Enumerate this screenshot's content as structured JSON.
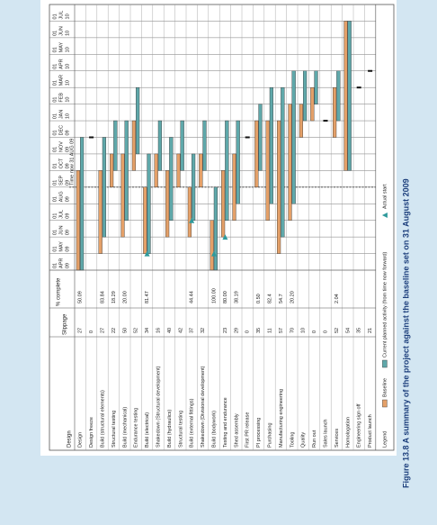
{
  "chart_data": {
    "type": "gantt",
    "title": "Figure 13.8 A summary of the project against the baseline set on 31 August 2009",
    "task_header": "Design",
    "slippage_header": "Slippage",
    "percent_header": "% complete",
    "time_now_label": "Time now 31 AUG 09",
    "time_now": "2009-08-31",
    "months": [
      [
        "01",
        "APR",
        "09"
      ],
      [
        "01",
        "MAY",
        "09"
      ],
      [
        "01",
        "JUN",
        "09"
      ],
      [
        "01",
        "JUL",
        "09"
      ],
      [
        "01",
        "AUG",
        "09"
      ],
      [
        "01",
        "SEP",
        "09"
      ],
      [
        "01",
        "OCT",
        "09"
      ],
      [
        "01",
        "NOV",
        "09"
      ],
      [
        "01",
        "DEC",
        "09"
      ],
      [
        "01",
        "JAN",
        "10"
      ],
      [
        "01",
        "FEB",
        "10"
      ],
      [
        "01",
        "MAR",
        "10"
      ],
      [
        "01",
        "APR",
        "10"
      ],
      [
        "01",
        "MAY",
        "10"
      ],
      [
        "01",
        "JUN",
        "10"
      ],
      [
        "01",
        "JUL",
        "10"
      ]
    ],
    "month_dates": [
      "2009-04",
      "2009-05",
      "2009-06",
      "2009-07",
      "2009-08",
      "2009-09",
      "2009-10",
      "2009-11",
      "2009-12",
      "2010-01",
      "2010-02",
      "2010-03",
      "2010-04",
      "2010-05",
      "2010-06",
      "2010-07"
    ],
    "colors": {
      "baseline": "#e4a068",
      "current": "#5fa8aa",
      "actual": "#2f9a9c"
    },
    "tasks": [
      {
        "name": "Design",
        "slippage": 27,
        "percent": "50.09",
        "baseline": [
          "2009-04",
          "2009-10"
        ],
        "current": [
          "2009-04",
          "2009-12"
        ]
      },
      {
        "name": "Design freeze",
        "slippage": 0,
        "milestone": "2009-12"
      },
      {
        "name": "Build (structural elements)",
        "slippage": 27,
        "percent": "83.84",
        "baseline": [
          "2009-05",
          "2009-10"
        ],
        "current": [
          "2009-06",
          "2009-12"
        ]
      },
      {
        "name": "Structural testing",
        "slippage": 22,
        "percent": "18.29",
        "baseline": [
          "2009-09",
          "2009-11"
        ],
        "current": [
          "2009-10",
          "2010-01"
        ]
      },
      {
        "name": "Build (mechanical)",
        "slippage": 50,
        "percent": "20.00",
        "baseline": [
          "2009-06",
          "2009-11"
        ],
        "current": [
          "2009-07",
          "2010-01"
        ]
      },
      {
        "name": "Endurance testing",
        "slippage": 52,
        "baseline": [
          "2009-10",
          "2010-01"
        ],
        "current": [
          "2009-11",
          "2010-03"
        ]
      },
      {
        "name": "Build (electrical)",
        "slippage": 34,
        "percent": "81.47",
        "baseline": [
          "2009-05",
          "2009-09"
        ],
        "current": [
          "2009-05",
          "2009-11"
        ],
        "actual": "2009-05"
      },
      {
        "name": "Shakedown (Structural development)",
        "slippage": 16,
        "baseline": [
          "2009-09",
          "2009-11"
        ],
        "current": [
          "2009-10",
          "2010-01"
        ]
      },
      {
        "name": "Build (hydraulics)",
        "slippage": 40,
        "baseline": [
          "2009-06",
          "2009-10"
        ],
        "current": [
          "2009-07",
          "2009-12"
        ]
      },
      {
        "name": "Structural testing",
        "slippage": 42,
        "baseline": [
          "2009-09",
          "2009-11"
        ],
        "current": [
          "2009-10",
          "2010-01"
        ]
      },
      {
        "name": "Build (external fittings)",
        "slippage": 37,
        "percent": "44.44",
        "baseline": [
          "2009-06",
          "2009-09"
        ],
        "current": [
          "2009-07",
          "2009-11"
        ],
        "actual": "2009-07"
      },
      {
        "name": "Shakedown (Divisional development)",
        "slippage": 32,
        "baseline": [
          "2009-09",
          "2009-11"
        ],
        "current": [
          "2009-10",
          "2010-01"
        ]
      },
      {
        "name": "Build (bodywork)",
        "percent": "100.00",
        "baseline": [
          "2009-04",
          "2009-07"
        ],
        "current": [
          "2009-04",
          "2009-09"
        ],
        "actual": "2009-05"
      },
      {
        "name": "Testing and endurance",
        "slippage": 23,
        "percent": "80.00",
        "baseline": [
          "2009-06",
          "2009-10"
        ],
        "current": [
          "2009-07",
          "2010-01"
        ],
        "actual": "2009-06"
      },
      {
        "name": "Shed assembly",
        "slippage": 29,
        "percent": "38.19",
        "baseline": [
          "2009-07",
          "2009-11"
        ],
        "current": [
          "2009-08",
          "2010-01"
        ]
      },
      {
        "name": "First PR release",
        "slippage": 0,
        "milestone": "2009-12"
      },
      {
        "name": "PI processing",
        "slippage": 35,
        "percent": "0.50",
        "baseline": [
          "2009-09",
          "2010-01"
        ],
        "current": [
          "2009-10",
          "2010-02"
        ]
      },
      {
        "name": "Purchasing",
        "slippage": 11,
        "percent": "82.4",
        "baseline": [
          "2009-07",
          "2010-01"
        ],
        "current": [
          "2009-08",
          "2010-03"
        ]
      },
      {
        "name": "Manufacturing engineering",
        "slippage": 57,
        "percent": "54.7",
        "baseline": [
          "2009-05",
          "2010-01"
        ],
        "current": [
          "2009-06",
          "2010-03"
        ]
      },
      {
        "name": "Tooling",
        "slippage": 70,
        "percent": "20.20",
        "baseline": [
          "2009-07",
          "2010-02"
        ],
        "current": [
          "2009-08",
          "2010-04"
        ]
      },
      {
        "name": "Quality",
        "slippage": 10,
        "baseline": [
          "2009-12",
          "2010-02"
        ],
        "current": [
          "2010-01",
          "2010-04"
        ]
      },
      {
        "name": "Run out",
        "slippage": 0,
        "baseline": [
          "2010-01",
          "2010-03"
        ],
        "current": [
          "2010-02",
          "2010-04"
        ]
      },
      {
        "name": "Sales launch",
        "slippage": 0,
        "milestone": "2010-01"
      },
      {
        "name": "Services",
        "slippage": 52,
        "percent": "2.04",
        "baseline": [
          "2009-12",
          "2010-03"
        ],
        "current": [
          "2010-01",
          "2010-04"
        ]
      },
      {
        "name": "Homologation",
        "slippage": 54,
        "baseline": [
          "2009-10",
          "2010-07"
        ],
        "current": [
          "2009-10",
          "2010-07"
        ]
      },
      {
        "name": "Engineering sign off",
        "slippage": 35,
        "milestone": "2010-03"
      },
      {
        "name": "Product launch",
        "slippage": 21,
        "milestone": "2010-04"
      }
    ],
    "legend": {
      "title": "Legend",
      "baseline": "Baseline",
      "current": "Current planned activity (from time now forward)",
      "actual": "Actual start"
    }
  }
}
